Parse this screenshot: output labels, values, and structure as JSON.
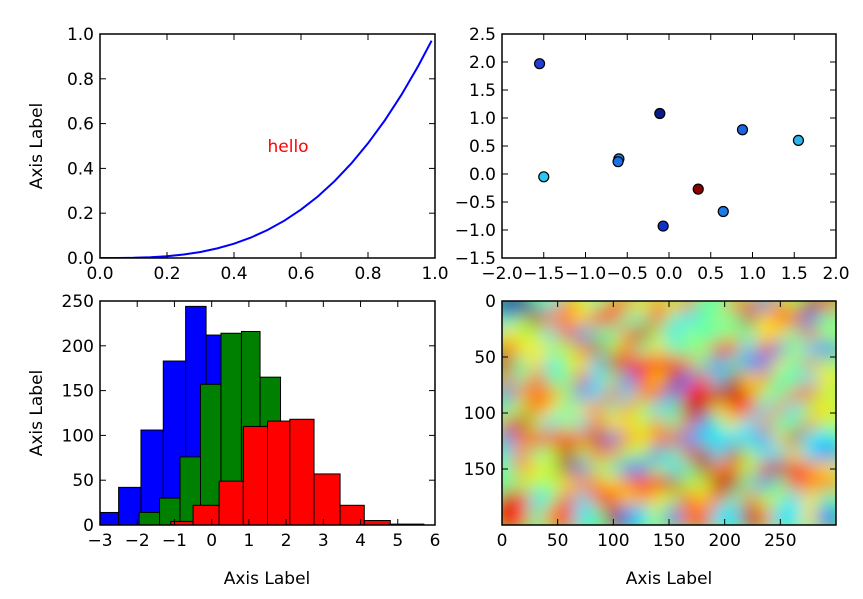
{
  "chart_data": [
    {
      "type": "line",
      "ylabel": "Axis Label",
      "annotation": {
        "text": "hello",
        "x": 0.5,
        "y": 0.5,
        "color": "#ff0000"
      },
      "xlim": [
        0,
        1
      ],
      "ylim": [
        0,
        1
      ],
      "xticks": [
        0.0,
        0.2,
        0.4,
        0.6,
        0.8,
        1.0
      ],
      "xtick_labels": [
        "0.0",
        "0.2",
        "0.4",
        "0.6",
        "0.8",
        "1.0"
      ],
      "yticks": [
        0.0,
        0.2,
        0.4,
        0.6,
        0.8,
        1.0
      ],
      "ytick_labels": [
        "0.0",
        "0.2",
        "0.4",
        "0.6",
        "0.8",
        "1.0"
      ],
      "series": [
        {
          "formula": "y = x^3",
          "color": "#0000ff",
          "x": [
            0,
            0.05,
            0.1,
            0.15,
            0.2,
            0.25,
            0.3,
            0.35,
            0.4,
            0.45,
            0.5,
            0.55,
            0.6,
            0.65,
            0.7,
            0.75,
            0.8,
            0.85,
            0.9,
            0.95,
            0.99
          ],
          "y": [
            0,
            0.0001,
            0.001,
            0.0034,
            0.008,
            0.0156,
            0.027,
            0.0429,
            0.064,
            0.0911,
            0.125,
            0.1664,
            0.216,
            0.2746,
            0.343,
            0.4219,
            0.512,
            0.6141,
            0.729,
            0.8574,
            0.9703
          ]
        }
      ]
    },
    {
      "type": "scatter",
      "xlim": [
        -2.0,
        2.0
      ],
      "ylim": [
        -1.5,
        2.5
      ],
      "xticks": [
        -2.0,
        -1.5,
        -1.0,
        -0.5,
        0.0,
        0.5,
        1.0,
        1.5,
        2.0
      ],
      "xtick_labels": [
        "−2.0",
        "−1.5",
        "−1.0",
        "−0.5",
        "0.0",
        "0.5",
        "1.0",
        "1.5",
        "2.0"
      ],
      "yticks": [
        -1.5,
        -1.0,
        -0.5,
        0.0,
        0.5,
        1.0,
        1.5,
        2.0,
        2.5
      ],
      "ytick_labels": [
        "−1.5",
        "−1.0",
        "−0.5",
        "0.0",
        "0.5",
        "1.0",
        "1.5",
        "2.0",
        "2.5"
      ],
      "points": [
        {
          "x": -1.55,
          "y": 1.97,
          "color": "#1f3fd0"
        },
        {
          "x": -1.5,
          "y": -0.05,
          "color": "#29c8f0"
        },
        {
          "x": -0.6,
          "y": 0.27,
          "color": "#1e90e6"
        },
        {
          "x": -0.61,
          "y": 0.22,
          "color": "#1c70e8"
        },
        {
          "x": -0.11,
          "y": 1.08,
          "color": "#0a1c8c"
        },
        {
          "x": 0.35,
          "y": -0.27,
          "color": "#8b0000"
        },
        {
          "x": -0.07,
          "y": -0.93,
          "color": "#1030c8"
        },
        {
          "x": 0.65,
          "y": -0.67,
          "color": "#1e7ae8"
        },
        {
          "x": 0.88,
          "y": 0.79,
          "color": "#1c64e0"
        },
        {
          "x": 1.55,
          "y": 0.6,
          "color": "#2ab4ee"
        }
      ]
    },
    {
      "type": "bar",
      "xlabel": "Axis Label",
      "ylabel": "Axis Label",
      "xlim": [
        -3,
        6
      ],
      "ylim": [
        0,
        250
      ],
      "xticks": [
        -3,
        -2,
        -1,
        0,
        1,
        2,
        3,
        4,
        5,
        6
      ],
      "xtick_labels": [
        "−3",
        "−2",
        "−1",
        "0",
        "1",
        "2",
        "3",
        "4",
        "5",
        "6"
      ],
      "yticks": [
        0,
        50,
        100,
        150,
        200,
        250
      ],
      "ytick_labels": [
        "0",
        "50",
        "100",
        "150",
        "200",
        "250"
      ],
      "series": [
        {
          "color": "#0000ff",
          "bin_edges": [
            -3.1,
            -2.5,
            -1.9,
            -1.3,
            -0.7,
            -0.15,
            0.4,
            0.95
          ],
          "values": [
            14,
            42,
            106,
            183,
            244,
            212,
            0
          ]
        },
        {
          "color": "#008000",
          "bin_edges": [
            -1.95,
            -1.4,
            -0.85,
            -0.3,
            0.25,
            0.8,
            1.3,
            1.85,
            2.4
          ],
          "values": [
            14,
            30,
            76,
            157,
            214,
            216,
            165,
            0
          ]
        },
        {
          "color": "#ff0000",
          "bin_edges": [
            -1.1,
            -0.5,
            0.2,
            0.85,
            1.5,
            2.1,
            2.75,
            3.45,
            4.1,
            4.8,
            5.7
          ],
          "values": [
            4,
            22,
            49,
            110,
            116,
            118,
            57,
            22,
            5,
            1
          ]
        }
      ]
    },
    {
      "type": "heatmap",
      "xlabel": "Axis Label",
      "xlim": [
        0,
        300
      ],
      "ylim": [
        200,
        0
      ],
      "xticks": [
        0,
        50,
        100,
        150,
        200,
        250
      ],
      "xtick_labels": [
        "0",
        "50",
        "100",
        "150",
        "200",
        "250"
      ],
      "yticks": [
        0,
        50,
        100,
        150
      ],
      "ytick_labels": [
        "0",
        "50",
        "100",
        "150"
      ],
      "colormap": "jet"
    }
  ]
}
